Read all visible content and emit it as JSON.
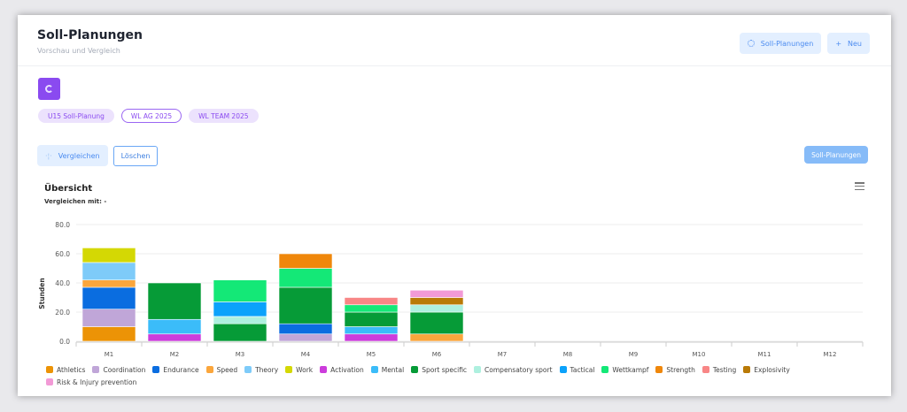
{
  "header": {
    "title": "Soll-Planungen",
    "subtitle": "Vorschau und Vergleich",
    "btn_plans": "Soll-Planungen",
    "btn_new": "Neu"
  },
  "chips": [
    "U15 Soll-Planung",
    "WL AG 2025",
    "WL TEAM 2025"
  ],
  "actions": {
    "compare": "Vergleichen",
    "delete": "Löschen",
    "plans": "Soll-Planungen"
  },
  "chart_header": {
    "title": "Übersicht",
    "compare_with": "Vergleichen mit: -"
  },
  "chart_data": {
    "type": "bar",
    "stacked": true,
    "ylabel": "Stunden",
    "ylim": [
      0,
      80
    ],
    "yticks": [
      "0.0",
      "20.0",
      "40.0",
      "60.0",
      "80.0"
    ],
    "grid": true,
    "legend": "bottom",
    "categories": [
      "M1",
      "M2",
      "M3",
      "M4",
      "M5",
      "M6",
      "M7",
      "M8",
      "M9",
      "M10",
      "M11",
      "M12"
    ],
    "series": [
      {
        "name": "Athletics",
        "color": "#ec9306",
        "values": [
          10,
          0,
          0,
          0,
          0,
          0,
          0,
          0,
          0,
          0,
          0,
          0
        ]
      },
      {
        "name": "Coordination",
        "color": "#c0a6d8",
        "values": [
          12,
          0,
          0,
          5,
          0,
          0,
          0,
          0,
          0,
          0,
          0,
          0
        ]
      },
      {
        "name": "Endurance",
        "color": "#0a6de0",
        "values": [
          15,
          0,
          0,
          7,
          0,
          0,
          0,
          0,
          0,
          0,
          0,
          0
        ]
      },
      {
        "name": "Speed",
        "color": "#fba63c",
        "values": [
          5,
          0,
          0,
          0,
          0,
          5,
          0,
          0,
          0,
          0,
          0,
          0
        ]
      },
      {
        "name": "Theory",
        "color": "#7ecbf9",
        "values": [
          12,
          0,
          0,
          0,
          0,
          0,
          0,
          0,
          0,
          0,
          0,
          0
        ]
      },
      {
        "name": "Work",
        "color": "#d4d804",
        "values": [
          10,
          0,
          0,
          0,
          0,
          0,
          0,
          0,
          0,
          0,
          0,
          0
        ]
      },
      {
        "name": "Activation",
        "color": "#cc3ddc",
        "values": [
          0,
          5,
          0,
          0,
          5,
          0,
          0,
          0,
          0,
          0,
          0,
          0
        ]
      },
      {
        "name": "Mental",
        "color": "#3bbcf9",
        "values": [
          0,
          10,
          0,
          0,
          5,
          0,
          0,
          0,
          0,
          0,
          0,
          0
        ]
      },
      {
        "name": "Sport specific",
        "color": "#069b37",
        "values": [
          0,
          25,
          12,
          25,
          10,
          15,
          0,
          0,
          0,
          0,
          0,
          0
        ]
      },
      {
        "name": "Compensatory sport",
        "color": "#aef0df",
        "values": [
          0,
          0,
          5,
          0,
          0,
          5,
          0,
          0,
          0,
          0,
          0,
          0
        ]
      },
      {
        "name": "Tactical",
        "color": "#0ba2fb",
        "values": [
          0,
          0,
          10,
          0,
          0,
          0,
          0,
          0,
          0,
          0,
          0,
          0
        ]
      },
      {
        "name": "Wettkampf",
        "color": "#14e877",
        "values": [
          0,
          0,
          15,
          13,
          5,
          0,
          0,
          0,
          0,
          0,
          0,
          0
        ]
      },
      {
        "name": "Strength",
        "color": "#ef870b",
        "values": [
          0,
          0,
          0,
          10,
          0,
          0,
          0,
          0,
          0,
          0,
          0,
          0
        ]
      },
      {
        "name": "Testing",
        "color": "#f88686",
        "values": [
          0,
          0,
          0,
          0,
          5,
          0,
          0,
          0,
          0,
          0,
          0,
          0
        ]
      },
      {
        "name": "Explosivity",
        "color": "#b97a07",
        "values": [
          0,
          0,
          0,
          0,
          0,
          5,
          0,
          0,
          0,
          0,
          0,
          0
        ]
      },
      {
        "name": "Risk & Injury prevention",
        "color": "#f29ad6",
        "values": [
          0,
          0,
          0,
          0,
          0,
          5,
          0,
          0,
          0,
          0,
          0,
          0
        ]
      }
    ]
  }
}
